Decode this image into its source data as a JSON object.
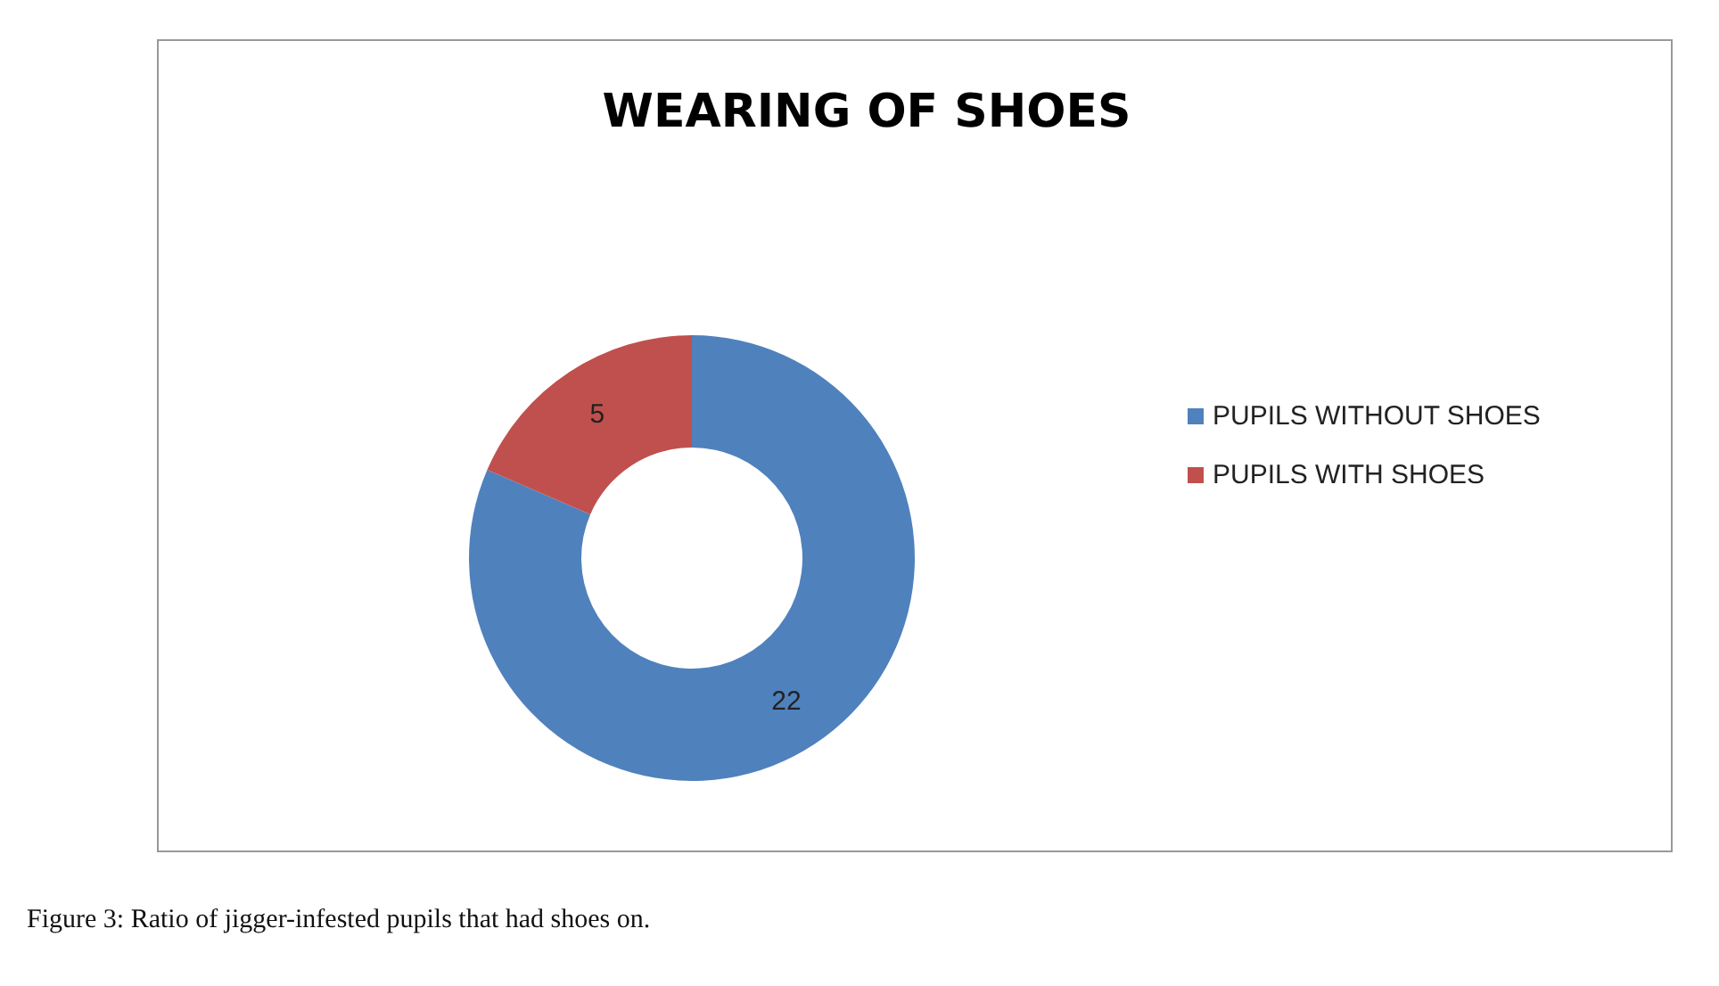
{
  "chart_data": {
    "type": "donut",
    "title": "WEARING OF SHOES",
    "categories": [
      "PUPILS WITHOUT SHOES",
      "PUPILS WITH SHOES"
    ],
    "values": [
      22,
      5
    ],
    "colors": [
      "#4f81bd",
      "#c0504d"
    ],
    "data_labels": true,
    "legend": "right",
    "annotations": [
      "Figure 3: Ratio of jigger-infested pupils that had shoes on."
    ]
  }
}
